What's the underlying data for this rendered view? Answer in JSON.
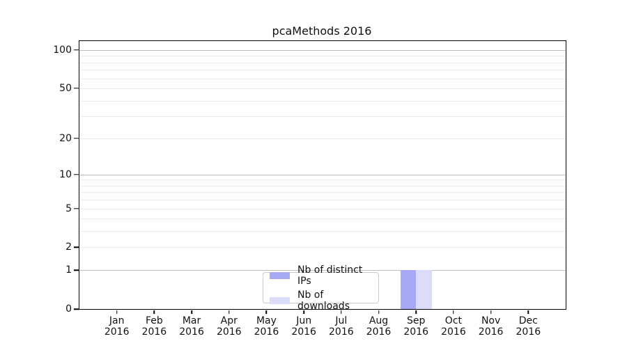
{
  "chart_data": {
    "type": "bar",
    "title": "pcaMethods 2016",
    "x_categories": [
      "Jan",
      "Feb",
      "Mar",
      "Apr",
      "May",
      "Jun",
      "Jul",
      "Aug",
      "Sep",
      "Oct",
      "Nov",
      "Dec"
    ],
    "x_year": "2016",
    "series": [
      {
        "name": "Nb of distinct IPs",
        "color": "#a7a9f4",
        "values": [
          0,
          0,
          0,
          0,
          0,
          0,
          0,
          0,
          1,
          0,
          0,
          0
        ]
      },
      {
        "name": "Nb of downloads",
        "color": "#dbdcf8",
        "values": [
          0,
          0,
          0,
          0,
          0,
          0,
          0,
          0,
          1,
          0,
          0,
          0
        ]
      }
    ],
    "yscale": "log1p",
    "ylim": [
      0,
      117.5
    ],
    "yticks": [
      0,
      1,
      2,
      5,
      10,
      20,
      50,
      100
    ],
    "grid": {
      "minor_values": [
        2,
        3,
        4,
        5,
        6,
        7,
        8,
        9,
        20,
        30,
        40,
        50,
        60,
        70,
        80,
        90
      ],
      "major_values": [
        1,
        10,
        100
      ]
    },
    "bar_width_frac": 0.42,
    "legend": {
      "entries": [
        "Nb of distinct IPs",
        "Nb of downloads"
      ],
      "position": "lower center"
    },
    "colors": {
      "grid_minor": "#ececec",
      "grid_major": "#bdbdbd",
      "spine": "#000000",
      "bar_distinct_ips": "#a7a9f4",
      "bar_downloads": "#dbdcf8"
    }
  }
}
